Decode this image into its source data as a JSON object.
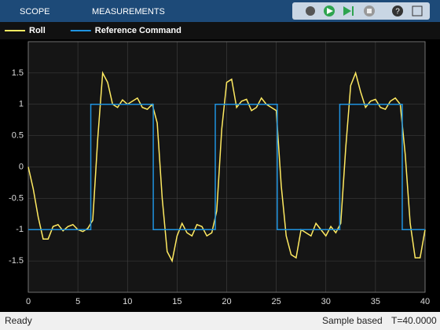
{
  "toolbar": {
    "tabs": [
      "SCOPE",
      "MEASUREMENTS"
    ]
  },
  "chart_data": {
    "type": "line",
    "series": [
      {
        "name": "Roll",
        "color": "#ffea61",
        "x": [
          0,
          0.5,
          1,
          1.5,
          2,
          2.5,
          3,
          3.5,
          4,
          4.5,
          5,
          5.5,
          6,
          6.5,
          7,
          7.5,
          8,
          8.5,
          9,
          9.5,
          10,
          10.5,
          11,
          11.5,
          12,
          12.5,
          13,
          13.5,
          14,
          14.5,
          15,
          15.5,
          16,
          16.5,
          17,
          17.5,
          18,
          18.5,
          19,
          19.5,
          20,
          20.5,
          21,
          21.5,
          22,
          22.5,
          23,
          23.5,
          24,
          24.5,
          25,
          25.5,
          26,
          26.5,
          27,
          27.5,
          28,
          28.5,
          29,
          29.5,
          30,
          30.5,
          31,
          31.5,
          32,
          32.5,
          33,
          33.5,
          34,
          34.5,
          35,
          35.5,
          36,
          36.5,
          37,
          37.5,
          38,
          38.5,
          39,
          39.5,
          40
        ],
        "values": [
          0,
          -0.35,
          -0.8,
          -1.15,
          -1.15,
          -0.95,
          -0.92,
          -1.02,
          -0.95,
          -0.92,
          -1,
          -1.03,
          -0.98,
          -0.85,
          0.45,
          1.5,
          1.35,
          1,
          0.95,
          1.07,
          1,
          1.05,
          1.1,
          0.95,
          0.92,
          1,
          0.7,
          -0.5,
          -1.35,
          -1.5,
          -1.1,
          -0.9,
          -1.05,
          -1.1,
          -0.92,
          -0.95,
          -1.1,
          -1.05,
          -0.7,
          0.6,
          1.35,
          1.4,
          0.95,
          1.05,
          1.08,
          0.9,
          0.95,
          1.1,
          1,
          0.95,
          0.9,
          -0.3,
          -1.1,
          -1.4,
          -1.45,
          -1,
          -1.05,
          -1.1,
          -0.9,
          -1,
          -1.1,
          -0.95,
          -1.05,
          -0.9,
          0.3,
          1.3,
          1.5,
          1.2,
          0.95,
          1.05,
          1.08,
          0.95,
          0.92,
          1.05,
          1.1,
          1,
          0.2,
          -0.9,
          -1.45,
          -1.45,
          -1
        ]
      },
      {
        "name": "Reference Command",
        "color": "#1f93e0",
        "x": [
          0,
          6.3,
          6.3,
          12.6,
          12.6,
          18.85,
          18.85,
          25.1,
          25.1,
          31.4,
          31.4,
          37.7,
          37.7,
          40
        ],
        "values": [
          -1,
          -1,
          1,
          1,
          -1,
          -1,
          1,
          1,
          -1,
          -1,
          1,
          1,
          -1,
          -1
        ]
      }
    ],
    "xlim": [
      0,
      40
    ],
    "xticks": [
      0,
      5,
      10,
      15,
      20,
      25,
      30,
      35,
      40
    ],
    "ylim": [
      -2,
      2
    ],
    "yticks": [
      -1.5,
      -1,
      -0.5,
      0,
      0.5,
      1,
      1.5
    ],
    "grid": true
  },
  "status": {
    "left": "Ready",
    "mode": "Sample based",
    "time": "T=40.0000"
  }
}
